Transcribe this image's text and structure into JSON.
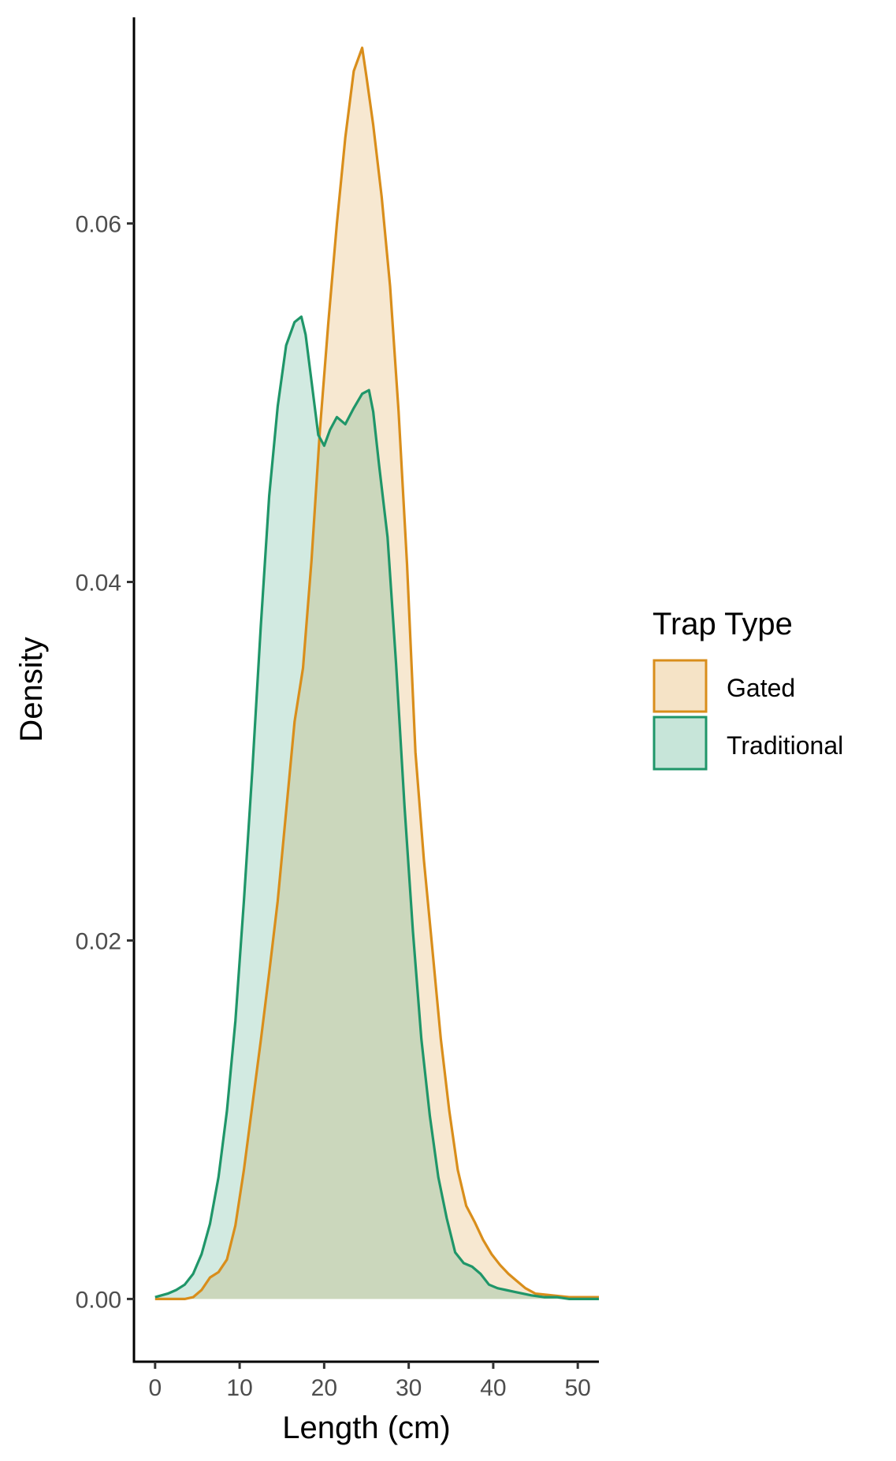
{
  "chart_data": {
    "type": "area",
    "title": "",
    "xlabel": "Length (cm)",
    "ylabel": "Density",
    "xlim": [
      -2.5,
      52.5
    ],
    "ylim": [
      -0.0035,
      0.0715
    ],
    "xticks": [
      0,
      10,
      20,
      30,
      40,
      50
    ],
    "xtick_labels": [
      "0",
      "10",
      "20",
      "30",
      "40",
      "50"
    ],
    "yticks": [
      0,
      0.02,
      0.04,
      0.06
    ],
    "ytick_labels": [
      "0.00",
      "0.02",
      "0.04",
      "0.06"
    ],
    "grid": false,
    "legend": {
      "title": "Trap Type",
      "position": "right"
    },
    "series": [
      {
        "name": "Gated",
        "color": "#d98e1b",
        "fill": "#f7e7cf",
        "x": [
          0,
          2,
          3.5,
          4.5,
          5.5,
          6.5,
          7.5,
          8.5,
          9.5,
          10.5,
          11.5,
          12.5,
          13.5,
          14.5,
          15.5,
          16.5,
          17.5,
          18.5,
          19.5,
          20.5,
          21.5,
          22.5,
          23.5,
          24.5,
          25,
          25.8,
          26.8,
          27.8,
          28.8,
          29.8,
          30.8,
          31.8,
          32.8,
          33.8,
          34.8,
          35.8,
          36.8,
          37.8,
          38.8,
          39.8,
          40.8,
          41.8,
          42.8,
          43.8,
          45,
          47,
          49,
          50.5,
          51.5,
          52.5
        ],
        "y": [
          0.0,
          0.0,
          0.0,
          0.0001,
          0.0005,
          0.0012,
          0.0015,
          0.0022,
          0.0041,
          0.0072,
          0.0108,
          0.0144,
          0.0182,
          0.0222,
          0.0272,
          0.0322,
          0.0352,
          0.0412,
          0.0485,
          0.0545,
          0.06,
          0.0648,
          0.0685,
          0.0698,
          0.0682,
          0.0655,
          0.0615,
          0.0565,
          0.0495,
          0.041,
          0.0305,
          0.0245,
          0.0195,
          0.0145,
          0.0105,
          0.0072,
          0.0052,
          0.0043,
          0.0033,
          0.0025,
          0.0019,
          0.0014,
          0.001,
          0.0006,
          0.0003,
          0.0002,
          0.0001,
          0.0001,
          0.0001,
          0.0001
        ]
      },
      {
        "name": "Traditional",
        "color": "#1f9669",
        "fill": "#d2eadf",
        "x": [
          0,
          1.5,
          2.5,
          3.5,
          4.5,
          5.5,
          6.5,
          7.5,
          8.5,
          9.5,
          10.5,
          11.5,
          12.5,
          13.5,
          14.5,
          15.5,
          16.5,
          17.3,
          17.8,
          18.5,
          19.3,
          20,
          20.7,
          21.5,
          22.5,
          23.5,
          24.5,
          25.3,
          25.8,
          26.5,
          27.5,
          28.5,
          29.5,
          30.5,
          31.5,
          32.5,
          33.5,
          34.5,
          35.5,
          36.5,
          37.5,
          38.5,
          39.5,
          40.5,
          41.5,
          42.5,
          43.5,
          44.5,
          46,
          47.5,
          49,
          50.5,
          52.5
        ],
        "y": [
          0.0001,
          0.0003,
          0.0005,
          0.0008,
          0.0014,
          0.0025,
          0.0042,
          0.0068,
          0.0105,
          0.0155,
          0.0222,
          0.0295,
          0.0375,
          0.0448,
          0.0498,
          0.0532,
          0.0545,
          0.0548,
          0.0538,
          0.0512,
          0.0482,
          0.0476,
          0.0485,
          0.0492,
          0.0488,
          0.0497,
          0.0505,
          0.0507,
          0.0495,
          0.0465,
          0.0425,
          0.0355,
          0.0275,
          0.0205,
          0.0145,
          0.0102,
          0.0068,
          0.0045,
          0.0026,
          0.002,
          0.0018,
          0.0014,
          0.0008,
          0.0006,
          0.0005,
          0.0004,
          0.0003,
          0.0002,
          0.0001,
          0.0001,
          0.0,
          0.0,
          0.0
        ]
      }
    ]
  }
}
